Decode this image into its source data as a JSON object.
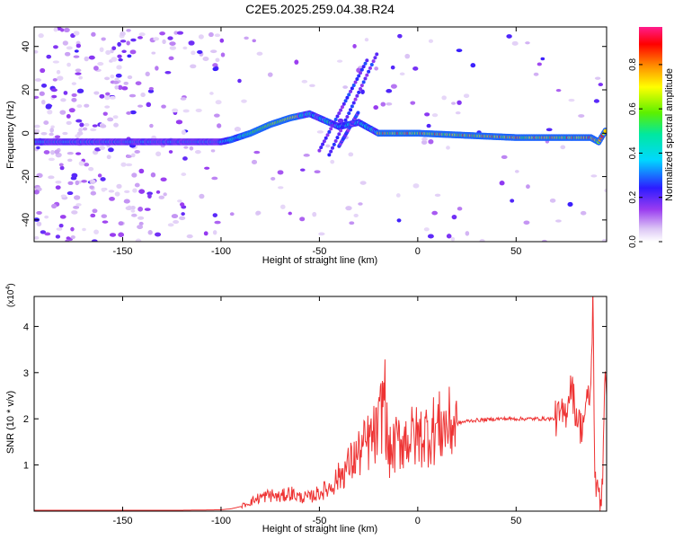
{
  "title": "C2E5.2025.259.04.38.R24",
  "chart_data": [
    {
      "type": "heatmap",
      "xlabel": "Height of straight line (km)",
      "ylabel": "Frequency (Hz)",
      "xlim": [
        -195,
        96
      ],
      "ylim": [
        -50,
        49
      ],
      "x_ticks": [
        -150,
        -100,
        -50,
        0,
        50
      ],
      "y_ticks": [
        -40,
        -20,
        0,
        20,
        40
      ],
      "colorbar": {
        "label": "Normalized spectral amplitude",
        "range": [
          0,
          0.97
        ],
        "ticks": [
          0.0,
          0.2,
          0.4,
          0.6,
          0.8
        ]
      },
      "ridge": [
        {
          "x": -195,
          "y": -4
        },
        {
          "x": -150,
          "y": -4
        },
        {
          "x": -120,
          "y": -4
        },
        {
          "x": -100,
          "y": -4
        },
        {
          "x": -95,
          "y": -3
        },
        {
          "x": -85,
          "y": 0
        },
        {
          "x": -75,
          "y": 4
        },
        {
          "x": -65,
          "y": 7
        },
        {
          "x": -55,
          "y": 9
        },
        {
          "x": -40,
          "y": 3
        },
        {
          "x": -30,
          "y": 5
        },
        {
          "x": -20,
          "y": 0
        },
        {
          "x": 0,
          "y": 0
        },
        {
          "x": 25,
          "y": -1
        },
        {
          "x": 50,
          "y": -2
        },
        {
          "x": 75,
          "y": -2
        },
        {
          "x": 88,
          "y": -2
        },
        {
          "x": 92,
          "y": -4
        },
        {
          "x": 96,
          "y": 2
        }
      ]
    },
    {
      "type": "line",
      "xlabel": "Height of straight line (km)",
      "ylabel": "SNR (10 * v/v)",
      "yscale_label": "(x10^4)",
      "xlim": [
        -195,
        96
      ],
      "ylim": [
        0,
        4.65
      ],
      "x_ticks": [
        -150,
        -100,
        -50,
        0,
        50
      ],
      "y_ticks": [
        1,
        2,
        3,
        4
      ],
      "color": "#ee3333",
      "series": [
        {
          "x": [
            -195,
            -150,
            -120,
            -100,
            -95,
            -90,
            -85,
            -80,
            -75,
            -70,
            -65,
            -60,
            -55,
            -50,
            -45,
            -40,
            -35,
            -30,
            -25,
            -20,
            -17,
            -15,
            -10,
            -5,
            0,
            5,
            10,
            15,
            20,
            25,
            30,
            35,
            40,
            45,
            50,
            55,
            60,
            65,
            70,
            75,
            78,
            80,
            83,
            86,
            88,
            89,
            90,
            91,
            92,
            93,
            94,
            95,
            96
          ],
          "values": [
            0.02,
            0.02,
            0.02,
            0.03,
            0.05,
            0.1,
            0.2,
            0.3,
            0.35,
            0.3,
            0.4,
            0.3,
            0.3,
            0.4,
            0.5,
            0.75,
            1.0,
            1.25,
            1.5,
            1.7,
            2.65,
            1.2,
            1.5,
            1.6,
            1.6,
            1.7,
            1.8,
            1.85,
            1.9,
            1.95,
            1.97,
            1.98,
            2.0,
            2.0,
            2.0,
            2.0,
            2.0,
            2.0,
            2.0,
            2.1,
            2.8,
            2.2,
            1.8,
            2.3,
            2.6,
            4.65,
            1.0,
            0.3,
            0.5,
            0.2,
            0.8,
            3.0,
            2.5
          ]
        }
      ]
    }
  ]
}
